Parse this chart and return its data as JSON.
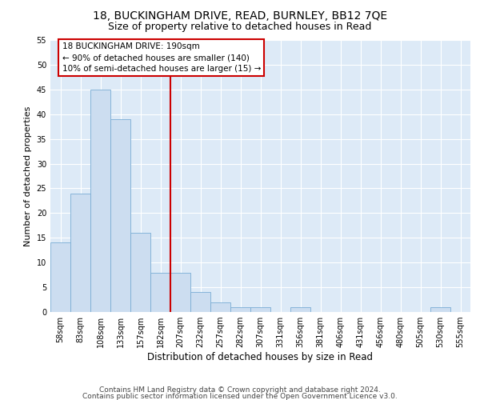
{
  "title1": "18, BUCKINGHAM DRIVE, READ, BURNLEY, BB12 7QE",
  "title2": "Size of property relative to detached houses in Read",
  "xlabel": "Distribution of detached houses by size in Read",
  "ylabel": "Number of detached properties",
  "categories": [
    "58sqm",
    "83sqm",
    "108sqm",
    "133sqm",
    "157sqm",
    "182sqm",
    "207sqm",
    "232sqm",
    "257sqm",
    "282sqm",
    "307sqm",
    "331sqm",
    "356sqm",
    "381sqm",
    "406sqm",
    "431sqm",
    "456sqm",
    "480sqm",
    "505sqm",
    "530sqm",
    "555sqm"
  ],
  "values": [
    14,
    24,
    45,
    39,
    16,
    8,
    8,
    4,
    2,
    1,
    1,
    0,
    1,
    0,
    0,
    0,
    0,
    0,
    0,
    1,
    0
  ],
  "bar_color": "#ccddf0",
  "bar_edge_color": "#7aadd4",
  "vline_x": 5.5,
  "vline_color": "#cc0000",
  "annotation_title": "18 BUCKINGHAM DRIVE: 190sqm",
  "annotation_line1": "← 90% of detached houses are smaller (140)",
  "annotation_line2": "10% of semi-detached houses are larger (15) →",
  "annotation_box_color": "#ffffff",
  "annotation_box_edge": "#cc0000",
  "ylim": [
    0,
    55
  ],
  "yticks": [
    0,
    5,
    10,
    15,
    20,
    25,
    30,
    35,
    40,
    45,
    50,
    55
  ],
  "footer1": "Contains HM Land Registry data © Crown copyright and database right 2024.",
  "footer2": "Contains public sector information licensed under the Open Government Licence v3.0.",
  "plot_bg": "#ddeaf7",
  "grid_color": "#ffffff",
  "title1_fontsize": 10,
  "title2_fontsize": 9,
  "xlabel_fontsize": 8.5,
  "ylabel_fontsize": 8,
  "tick_fontsize": 7,
  "annotation_fontsize": 7.5,
  "footer_fontsize": 6.5
}
